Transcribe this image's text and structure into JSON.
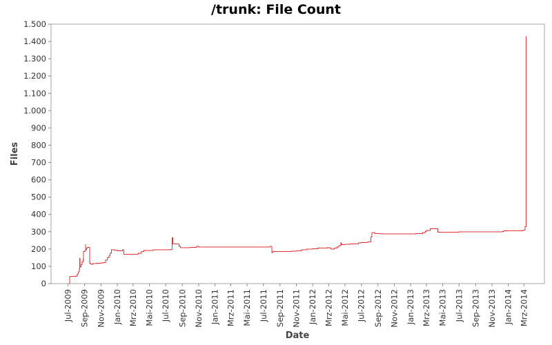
{
  "chart_data": {
    "type": "line",
    "title": "/trunk: File Count",
    "xlabel": "Date",
    "ylabel": "Files",
    "ylim": [
      0,
      1500
    ],
    "y_ticks": [
      0,
      100,
      200,
      300,
      400,
      500,
      600,
      700,
      800,
      900,
      1000,
      1100,
      1200,
      1300,
      1400,
      1500
    ],
    "y_tick_labels": [
      "0",
      "100",
      "200",
      "300",
      "400",
      "500",
      "600",
      "700",
      "800",
      "900",
      "1.000",
      "1.100",
      "1.200",
      "1.300",
      "1.400",
      "1.500"
    ],
    "xlim": [
      "2009-06-01",
      "2014-04-15"
    ],
    "x_ticks": [
      "2009-07-01",
      "2009-09-01",
      "2009-11-01",
      "2010-01-01",
      "2010-03-01",
      "2010-05-01",
      "2010-07-01",
      "2010-09-01",
      "2010-11-01",
      "2011-01-01",
      "2011-03-01",
      "2011-05-01",
      "2011-07-01",
      "2011-09-01",
      "2011-11-01",
      "2012-01-01",
      "2012-03-01",
      "2012-05-01",
      "2012-07-01",
      "2012-09-01",
      "2012-11-01",
      "2013-01-01",
      "2013-03-01",
      "2013-05-01",
      "2013-07-01",
      "2013-09-01",
      "2013-11-01",
      "2014-01-01",
      "2014-03-01"
    ],
    "x_tick_labels": [
      "Jul-2009",
      "Sep-2009",
      "Nov-2009",
      "Jan-2010",
      "Mrz-2010",
      "Mai-2010",
      "Jul-2010",
      "Sep-2010",
      "Nov-2010",
      "Jan-2011",
      "Mrz-2011",
      "Mai-2011",
      "Jul-2011",
      "Sep-2011",
      "Nov-2011",
      "Jan-2012",
      "Mrz-2012",
      "Mai-2012",
      "Jul-2012",
      "Sep-2012",
      "Nov-2012",
      "Jan-2013",
      "Mrz-2013",
      "Mai-2013",
      "Jul-2013",
      "Sep-2013",
      "Nov-2013",
      "Jan-2014",
      "Mrz-2014"
    ],
    "grid": false,
    "series": [
      {
        "color": "#e03030",
        "step": true,
        "points": [
          [
            "2009-07-06",
            0
          ],
          [
            "2009-07-07",
            40
          ],
          [
            "2009-07-10",
            42
          ],
          [
            "2009-08-01",
            44
          ],
          [
            "2009-08-04",
            55
          ],
          [
            "2009-08-08",
            68
          ],
          [
            "2009-08-12",
            85
          ],
          [
            "2009-08-14",
            145
          ],
          [
            "2009-08-15",
            95
          ],
          [
            "2009-08-18",
            110
          ],
          [
            "2009-08-22",
            125
          ],
          [
            "2009-08-26",
            140
          ],
          [
            "2009-08-28",
            185
          ],
          [
            "2009-09-02",
            190
          ],
          [
            "2009-09-04",
            225
          ],
          [
            "2009-09-05",
            195
          ],
          [
            "2009-09-08",
            205
          ],
          [
            "2009-09-12",
            210
          ],
          [
            "2009-09-20",
            118
          ],
          [
            "2009-09-24",
            112
          ],
          [
            "2009-10-01",
            115
          ],
          [
            "2009-10-15",
            117
          ],
          [
            "2009-11-01",
            120
          ],
          [
            "2009-11-10",
            122
          ],
          [
            "2009-11-18",
            135
          ],
          [
            "2009-11-24",
            150
          ],
          [
            "2009-12-01",
            160
          ],
          [
            "2009-12-05",
            175
          ],
          [
            "2009-12-10",
            195
          ],
          [
            "2009-12-20",
            193
          ],
          [
            "2010-01-01",
            190
          ],
          [
            "2010-01-20",
            195
          ],
          [
            "2010-01-26",
            170
          ],
          [
            "2010-03-01",
            170
          ],
          [
            "2010-03-20",
            175
          ],
          [
            "2010-04-01",
            185
          ],
          [
            "2010-04-10",
            192
          ],
          [
            "2010-05-15",
            195
          ],
          [
            "2010-05-30",
            195
          ],
          [
            "2010-07-20",
            198
          ],
          [
            "2010-07-25",
            265
          ],
          [
            "2010-07-27",
            230
          ],
          [
            "2010-08-20",
            215
          ],
          [
            "2010-08-25",
            208
          ],
          [
            "2010-10-01",
            210
          ],
          [
            "2010-10-25",
            215
          ],
          [
            "2010-11-01",
            212
          ],
          [
            "2010-11-18",
            212
          ],
          [
            "2011-07-25",
            215
          ],
          [
            "2011-08-01",
            180
          ],
          [
            "2011-08-06",
            185
          ],
          [
            "2011-10-15",
            187
          ],
          [
            "2011-11-01",
            190
          ],
          [
            "2011-11-20",
            195
          ],
          [
            "2011-12-10",
            200
          ],
          [
            "2012-01-01",
            202
          ],
          [
            "2012-01-20",
            205
          ],
          [
            "2012-02-25",
            208
          ],
          [
            "2012-03-05",
            205
          ],
          [
            "2012-03-10",
            200
          ],
          [
            "2012-03-22",
            205
          ],
          [
            "2012-04-01",
            212
          ],
          [
            "2012-04-08",
            220
          ],
          [
            "2012-04-15",
            235
          ],
          [
            "2012-04-18",
            225
          ],
          [
            "2012-05-01",
            228
          ],
          [
            "2012-05-20",
            230
          ],
          [
            "2012-06-20",
            235
          ],
          [
            "2012-07-01",
            238
          ],
          [
            "2012-07-25",
            242
          ],
          [
            "2012-08-05",
            270
          ],
          [
            "2012-08-10",
            295
          ],
          [
            "2012-08-20",
            290
          ],
          [
            "2012-09-10",
            288
          ],
          [
            "2013-01-20",
            290
          ],
          [
            "2013-02-15",
            295
          ],
          [
            "2013-02-25",
            302
          ],
          [
            "2013-03-01",
            308
          ],
          [
            "2013-03-15",
            318
          ],
          [
            "2013-04-10",
            318
          ],
          [
            "2013-04-13",
            298
          ],
          [
            "2013-06-10",
            298
          ],
          [
            "2013-06-30",
            300
          ],
          [
            "2013-09-01",
            300
          ],
          [
            "2013-12-10",
            302
          ],
          [
            "2013-12-15",
            305
          ],
          [
            "2014-02-20",
            305
          ],
          [
            "2014-02-25",
            310
          ],
          [
            "2014-03-05",
            330
          ],
          [
            "2014-03-08",
            1430
          ]
        ]
      }
    ]
  }
}
